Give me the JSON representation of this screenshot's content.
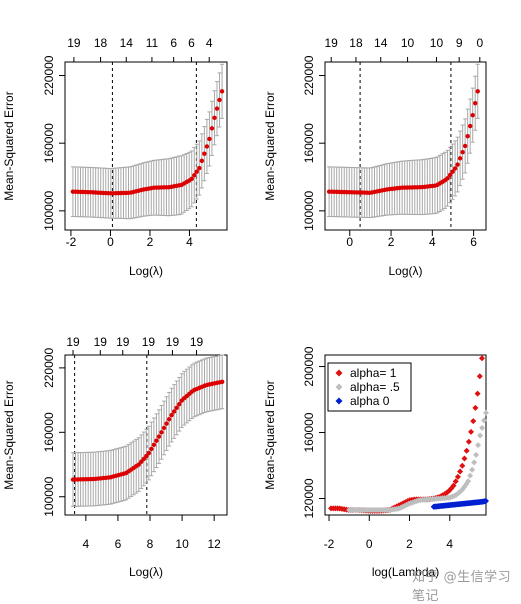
{
  "watermark": "知乎 @生信学习笔记",
  "chart_data": [
    {
      "type": "scatter",
      "xlabel": "Log(λ)",
      "ylabel": "Mean-Squared Error",
      "xlim": [
        -2.3,
        5.9
      ],
      "ylim": [
        83000,
        232000
      ],
      "xticks": [
        -2,
        0,
        2,
        4
      ],
      "yticks": [
        100000,
        160000,
        220000
      ],
      "top_ticks": [
        {
          "x": -1.85,
          "label": "19"
        },
        {
          "x": -0.5,
          "label": "18"
        },
        {
          "x": 0.8,
          "label": "14"
        },
        {
          "x": 2.1,
          "label": "11"
        },
        {
          "x": 3.2,
          "label": "6"
        },
        {
          "x": 4.1,
          "label": "6"
        },
        {
          "x": 5.0,
          "label": "4"
        }
      ],
      "vlines": [
        0.1,
        4.35
      ],
      "color": "#dd0000",
      "curve": [
        [
          -1.9,
          117000
        ],
        [
          -1.0,
          116500
        ],
        [
          0.0,
          115500
        ],
        [
          1.0,
          116000
        ],
        [
          1.7,
          119000
        ],
        [
          2.2,
          120500
        ],
        [
          3.0,
          121000
        ],
        [
          3.6,
          123000
        ],
        [
          4.1,
          128000
        ],
        [
          4.5,
          138000
        ],
        [
          5.0,
          163000
        ],
        [
          5.3,
          185000
        ],
        [
          5.65,
          206000
        ]
      ],
      "err": [
        [
          -1.9,
          22000
        ],
        [
          0.0,
          22000
        ],
        [
          2.0,
          24000
        ],
        [
          3.5,
          26000
        ],
        [
          4.5,
          24000
        ],
        [
          5.0,
          24000
        ],
        [
          5.65,
          24000
        ]
      ]
    },
    {
      "type": "scatter",
      "xlabel": "Log(λ)",
      "ylabel": "Mean-Squared Error",
      "xlim": [
        -1.2,
        6.6
      ],
      "ylim": [
        83000,
        232000
      ],
      "xticks": [
        0,
        2,
        4,
        6
      ],
      "yticks": [
        100000,
        160000,
        220000
      ],
      "top_ticks": [
        {
          "x": -0.9,
          "label": "19"
        },
        {
          "x": 0.3,
          "label": "18"
        },
        {
          "x": 1.5,
          "label": "14"
        },
        {
          "x": 2.8,
          "label": "10"
        },
        {
          "x": 4.2,
          "label": "10"
        },
        {
          "x": 5.3,
          "label": "9"
        },
        {
          "x": 6.3,
          "label": "0"
        }
      ],
      "vlines": [
        0.5,
        4.9
      ],
      "color": "#dd0000",
      "curve": [
        [
          -1.0,
          117000
        ],
        [
          0.0,
          116500
        ],
        [
          1.0,
          116000
        ],
        [
          1.8,
          119000
        ],
        [
          2.5,
          120500
        ],
        [
          3.5,
          121000
        ],
        [
          4.2,
          122500
        ],
        [
          4.7,
          128000
        ],
        [
          5.2,
          140000
        ],
        [
          5.6,
          158000
        ],
        [
          5.9,
          180000
        ],
        [
          6.2,
          206000
        ]
      ],
      "err": [
        [
          -1.0,
          22000
        ],
        [
          1.0,
          22000
        ],
        [
          3.0,
          24000
        ],
        [
          4.5,
          25000
        ],
        [
          5.5,
          24000
        ],
        [
          6.2,
          24000
        ]
      ]
    },
    {
      "type": "scatter",
      "xlabel": "Log(λ)",
      "ylabel": "Mean-Squared Error",
      "xlim": [
        2.7,
        12.8
      ],
      "ylim": [
        83000,
        232000
      ],
      "xticks": [
        4,
        6,
        8,
        10,
        12
      ],
      "yticks": [
        100000,
        160000,
        220000
      ],
      "top_ticks": [
        {
          "x": 3.2,
          "label": "19"
        },
        {
          "x": 4.9,
          "label": "19"
        },
        {
          "x": 6.3,
          "label": "19"
        },
        {
          "x": 7.9,
          "label": "19"
        },
        {
          "x": 9.4,
          "label": "19"
        },
        {
          "x": 10.9,
          "label": "19"
        }
      ],
      "vlines": [
        3.3,
        7.8
      ],
      "color": "#dd0000",
      "curve": [
        [
          3.2,
          116000
        ],
        [
          4.5,
          116500
        ],
        [
          5.5,
          118000
        ],
        [
          6.5,
          122000
        ],
        [
          7.3,
          130000
        ],
        [
          7.9,
          140000
        ],
        [
          8.6,
          157000
        ],
        [
          9.3,
          175000
        ],
        [
          10.0,
          190000
        ],
        [
          10.7,
          199000
        ],
        [
          11.5,
          204000
        ],
        [
          12.5,
          207000
        ]
      ],
      "err": [
        [
          3.2,
          25000
        ],
        [
          6.0,
          25000
        ],
        [
          8.0,
          25000
        ],
        [
          10.0,
          25000
        ],
        [
          12.5,
          25000
        ]
      ]
    },
    {
      "type": "scatter",
      "xlabel": "log(Lambda)",
      "ylabel": "Mean-Squared Error",
      "xlim": [
        -2.2,
        5.8
      ],
      "ylim": [
        110000,
        207000
      ],
      "xticks": [
        -2,
        0,
        2,
        4
      ],
      "yticks": [
        120000,
        160000,
        200000
      ],
      "series": [
        {
          "name": "alpha= 1",
          "color": "#e01010",
          "x": [
            -1.9,
            -1.5,
            -1.0,
            -0.5,
            0.0,
            0.5,
            1.0,
            1.5,
            2.0,
            2.3,
            2.6,
            2.9,
            3.2,
            3.5,
            3.8,
            4.0,
            4.2,
            4.4,
            4.6,
            4.8,
            5.0,
            5.2,
            5.4,
            5.6
          ],
          "y": [
            114000,
            114000,
            113000,
            113000,
            112500,
            112500,
            113000,
            116000,
            119000,
            119500,
            119500,
            119500,
            120000,
            121000,
            123000,
            125000,
            128000,
            133000,
            139000,
            147000,
            157000,
            169000,
            185000,
            205000
          ]
        },
        {
          "name": "alpha= .5",
          "color": "#bebebe",
          "x": [
            -1.0,
            -0.5,
            0.0,
            0.5,
            1.0,
            1.5,
            2.0,
            2.5,
            3.0,
            3.5,
            4.0,
            4.3,
            4.6,
            4.9,
            5.1,
            5.3,
            5.5,
            5.8
          ],
          "y": [
            113000,
            113000,
            113000,
            113000,
            113000,
            114000,
            117000,
            119000,
            119500,
            120000,
            120500,
            122000,
            125000,
            130000,
            137000,
            146000,
            158000,
            172000
          ]
        },
        {
          "name": "alpha 0",
          "color": "#0020d0",
          "x": [
            3.2,
            3.6,
            4.0,
            4.4,
            4.8,
            5.2,
            5.6,
            5.8
          ],
          "y": [
            115000,
            115500,
            116000,
            116500,
            117000,
            117500,
            118000,
            118500
          ]
        }
      ],
      "legend": "top-left"
    }
  ]
}
